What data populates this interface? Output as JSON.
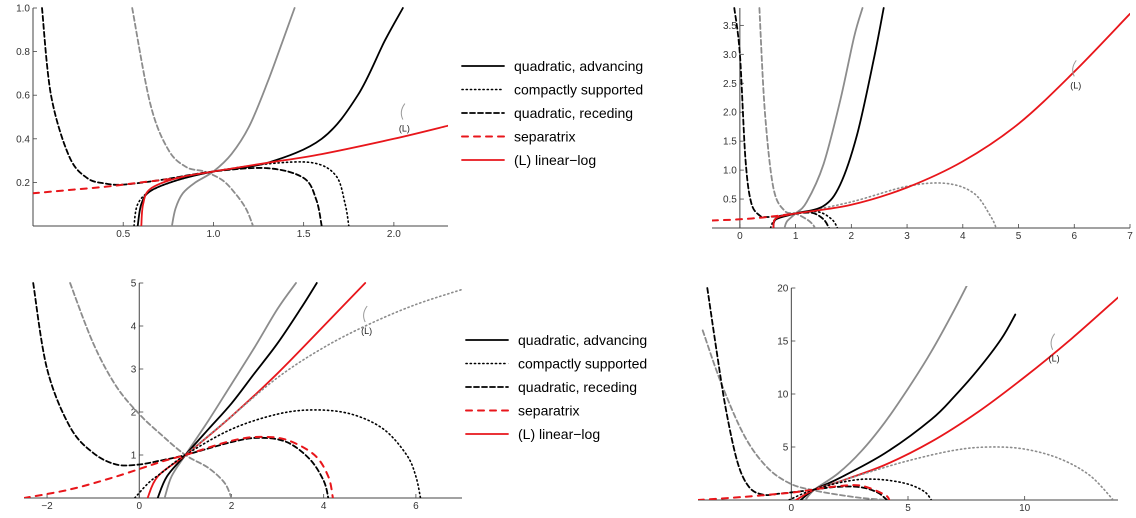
{
  "styles": {
    "black_solid": {
      "color": "#000000",
      "dash": "",
      "width": 1.8
    },
    "black_dotted": {
      "color": "#000000",
      "dash": "1.2,3",
      "width": 1.6
    },
    "black_dashed": {
      "color": "#000000",
      "dash": "5,3",
      "width": 1.8
    },
    "red_dashed": {
      "color": "#e8161b",
      "dash": "6,6",
      "width": 2
    },
    "red_solid": {
      "color": "#e8161b",
      "dash": "",
      "width": 1.8
    },
    "gray_solid": {
      "color": "#8c8c8c",
      "dash": "",
      "width": 1.8
    },
    "gray_dashed": {
      "color": "#8c8c8c",
      "dash": "5,3",
      "width": 1.8
    },
    "gray_dotted": {
      "color": "#8c8c8c",
      "dash": "1.2,3",
      "width": 1.6
    }
  },
  "legends": [
    {
      "items": [
        {
          "style": "black_solid",
          "label": "quadratic, advancing"
        },
        {
          "style": "black_dotted",
          "label": "compactly supported"
        },
        {
          "style": "black_dashed",
          "label": "quadratic, receding"
        },
        {
          "style": "red_dashed",
          "label": "separatrix"
        },
        {
          "style": "red_solid",
          "label": "(L) linear−log"
        }
      ]
    },
    {
      "items": [
        {
          "style": "black_solid",
          "label": "quadratic, advancing"
        },
        {
          "style": "black_dotted",
          "label": "compactly supported"
        },
        {
          "style": "black_dashed",
          "label": "quadratic, receding"
        },
        {
          "style": "red_dashed",
          "label": "separatrix"
        },
        {
          "style": "red_solid",
          "label": "(L) linear−log"
        }
      ]
    }
  ],
  "chart_data": [
    {
      "type": "line",
      "xlim": [
        0,
        2.3
      ],
      "ylim": [
        0,
        1.0
      ],
      "xticks": [
        0.5,
        1.0,
        1.5,
        2.0
      ],
      "xtick_labels": [
        "0.5",
        "1.0",
        "1.5",
        "2.0"
      ],
      "yticks": [
        0.2,
        0.4,
        0.6,
        0.8,
        1.0
      ],
      "ytick_labels": [
        "0.2",
        "0.4",
        "0.6",
        "0.8",
        "1.0"
      ],
      "y_axis_at": 0,
      "x_axis_at": 0,
      "annotation": {
        "text": "(L)",
        "x": 2.05,
        "y": 0.47
      },
      "series": [
        {
          "style": "gray_dashed",
          "x": [
            0.55,
            0.65,
            0.75,
            0.85,
            0.95,
            1.05,
            1.12,
            1.18,
            1.22
          ],
          "y": [
            1.0,
            0.56,
            0.35,
            0.27,
            0.25,
            0.21,
            0.15,
            0.08,
            0.0
          ]
        },
        {
          "style": "gray_solid",
          "x": [
            0.77,
            0.79,
            0.83,
            0.9,
            1.0,
            1.1,
            1.2,
            1.3,
            1.38,
            1.45
          ],
          "y": [
            0.0,
            0.08,
            0.15,
            0.2,
            0.25,
            0.33,
            0.46,
            0.66,
            0.84,
            1.0
          ]
        },
        {
          "style": "black_dotted",
          "x": [
            0.56,
            0.58,
            0.65,
            0.8,
            1.0,
            1.3,
            1.55,
            1.68,
            1.73,
            1.75
          ],
          "y": [
            0.0,
            0.1,
            0.16,
            0.21,
            0.25,
            0.285,
            0.29,
            0.23,
            0.1,
            0.0
          ]
        },
        {
          "style": "black_dashed",
          "x": [
            0.05,
            0.1,
            0.2,
            0.3,
            0.4,
            0.5,
            0.7,
            1.0,
            1.3,
            1.5,
            1.57,
            1.6
          ],
          "y": [
            1.0,
            0.6,
            0.32,
            0.22,
            0.195,
            0.19,
            0.21,
            0.25,
            0.265,
            0.22,
            0.12,
            0.0
          ]
        },
        {
          "style": "red_dashed",
          "x": [
            0.0,
            0.2,
            0.4,
            0.6,
            0.8,
            1.0
          ],
          "y": [
            0.15,
            0.165,
            0.18,
            0.2,
            0.22,
            0.25
          ]
        },
        {
          "style": "black_solid",
          "x": [
            0.58,
            0.6,
            0.65,
            0.8,
            1.0,
            1.3,
            1.6,
            1.8,
            1.95,
            2.05
          ],
          "y": [
            0.0,
            0.1,
            0.16,
            0.21,
            0.25,
            0.29,
            0.4,
            0.6,
            0.85,
            1.0
          ]
        },
        {
          "style": "red_solid",
          "x": [
            0.6,
            0.61,
            0.65,
            0.8,
            1.0,
            1.3,
            1.6,
            2.0,
            2.3
          ],
          "y": [
            0.0,
            0.1,
            0.17,
            0.22,
            0.25,
            0.29,
            0.33,
            0.4,
            0.46
          ]
        }
      ]
    },
    {
      "type": "line",
      "xlim": [
        -0.5,
        7
      ],
      "ylim": [
        0,
        3.8
      ],
      "xticks": [
        0,
        1,
        2,
        3,
        4,
        5,
        6,
        7
      ],
      "xtick_labels": [
        "0",
        "1",
        "2",
        "3",
        "4",
        "5",
        "6",
        "7"
      ],
      "yticks": [
        0.5,
        1.0,
        1.5,
        2.0,
        2.5,
        3.0,
        3.5
      ],
      "ytick_labels": [
        "0.5",
        "1.0",
        "1.5",
        "2.0",
        "2.5",
        "3.0",
        "3.5"
      ],
      "y_axis_at": 0,
      "x_axis_at": 0,
      "annotation": {
        "text": "(L)",
        "x": 6.0,
        "y": 2.55
      },
      "series": [
        {
          "style": "gray_dashed",
          "x": [
            0.35,
            0.45,
            0.6,
            0.8,
            1.0,
            1.2,
            1.3,
            1.35
          ],
          "y": [
            3.8,
            2.0,
            0.7,
            0.3,
            0.25,
            0.15,
            0.07,
            0.0
          ]
        },
        {
          "style": "gray_solid",
          "x": [
            0.8,
            0.85,
            1.0,
            1.2,
            1.5,
            1.8,
            2.05,
            2.2
          ],
          "y": [
            0.0,
            0.12,
            0.25,
            0.45,
            1.1,
            2.2,
            3.3,
            3.8
          ]
        },
        {
          "style": "gray_dotted",
          "x": [
            1.0,
            2.0,
            3.0,
            3.7,
            4.2,
            4.5,
            4.6
          ],
          "y": [
            0.25,
            0.45,
            0.72,
            0.77,
            0.6,
            0.2,
            0.0
          ]
        },
        {
          "style": "black_dotted",
          "x": [
            0.55,
            0.65,
            1.0,
            1.4,
            1.65,
            1.75
          ],
          "y": [
            0.0,
            0.16,
            0.25,
            0.28,
            0.15,
            0.0
          ]
        },
        {
          "style": "black_dashed",
          "x": [
            -0.1,
            0.0,
            0.1,
            0.2,
            0.35,
            0.5,
            0.8,
            1.0,
            1.3,
            1.5,
            1.6
          ],
          "y": [
            3.8,
            3.0,
            1.2,
            0.45,
            0.22,
            0.19,
            0.22,
            0.25,
            0.26,
            0.15,
            0.0
          ]
        },
        {
          "style": "red_dashed",
          "x": [
            -0.5,
            0.0,
            0.5,
            1.0
          ],
          "y": [
            0.13,
            0.15,
            0.19,
            0.25
          ]
        },
        {
          "style": "black_solid",
          "x": [
            0.6,
            0.65,
            1.0,
            1.5,
            1.8,
            2.1,
            2.4,
            2.58
          ],
          "y": [
            0.0,
            0.15,
            0.25,
            0.38,
            0.75,
            1.6,
            2.9,
            3.8
          ]
        },
        {
          "style": "red_solid",
          "x": [
            0.6,
            0.65,
            1.0,
            2.0,
            3.0,
            4.0,
            5.0,
            6.0,
            7.0
          ],
          "y": [
            0.0,
            0.17,
            0.25,
            0.4,
            0.7,
            1.15,
            1.8,
            2.7,
            3.7
          ]
        }
      ]
    },
    {
      "type": "line",
      "xlim": [
        -2.5,
        7
      ],
      "ylim": [
        0,
        5
      ],
      "xticks": [
        -2,
        0,
        2,
        4,
        6
      ],
      "xtick_labels": [
        "−2",
        "0",
        "2",
        "4",
        "6"
      ],
      "yticks": [
        1,
        2,
        3,
        4,
        5
      ],
      "ytick_labels": [
        "1",
        "2",
        "3",
        "4",
        "5"
      ],
      "y_axis_at": 0,
      "x_axis_at": 0,
      "annotation": {
        "text": "(L)",
        "x": 4.9,
        "y": 4.0
      },
      "series": [
        {
          "style": "gray_dashed",
          "x": [
            -1.5,
            -1.0,
            -0.5,
            0.0,
            0.5,
            1.0,
            1.5,
            1.85,
            2.0
          ],
          "y": [
            5.0,
            3.6,
            2.6,
            1.95,
            1.45,
            1.0,
            0.7,
            0.35,
            0.0
          ]
        },
        {
          "style": "gray_solid",
          "x": [
            0.55,
            0.7,
            1.0,
            1.5,
            2.0,
            2.5,
            3.0,
            3.4
          ],
          "y": [
            0.0,
            0.5,
            1.0,
            1.8,
            2.65,
            3.5,
            4.4,
            5.0
          ]
        },
        {
          "style": "black_solid",
          "x": [
            0.4,
            0.6,
            1.0,
            1.5,
            2.0,
            2.5,
            3.0,
            3.5,
            3.85
          ],
          "y": [
            0.0,
            0.5,
            1.0,
            1.6,
            2.2,
            2.9,
            3.6,
            4.4,
            5.0
          ]
        },
        {
          "style": "red_solid",
          "x": [
            0.18,
            0.4,
            1.0,
            2.0,
            3.0,
            4.0,
            4.9
          ],
          "y": [
            0.0,
            0.5,
            1.0,
            1.9,
            2.9,
            4.0,
            5.0
          ]
        },
        {
          "style": "gray_dotted",
          "x": [
            1.0,
            2.0,
            3.0,
            4.0,
            5.0,
            6.0,
            7.0
          ],
          "y": [
            1.0,
            1.9,
            2.8,
            3.5,
            4.05,
            4.5,
            4.85
          ]
        },
        {
          "style": "black_dotted",
          "x": [
            -0.1,
            0.2,
            0.5,
            1.0,
            2.0,
            3.0,
            3.8,
            4.6,
            5.3,
            5.8,
            6.0,
            6.1
          ],
          "y": [
            0.0,
            0.35,
            0.6,
            1.0,
            1.6,
            1.95,
            2.05,
            1.95,
            1.6,
            1.0,
            0.5,
            0.0
          ]
        },
        {
          "style": "black_dashed",
          "x": [
            -2.3,
            -2.0,
            -1.5,
            -1.0,
            -0.5,
            0.0,
            0.5,
            1.0,
            2.0,
            2.6,
            3.2,
            3.7,
            4.0,
            4.1
          ],
          "y": [
            5.0,
            3.0,
            1.65,
            1.05,
            0.78,
            0.78,
            0.88,
            1.0,
            1.3,
            1.4,
            1.3,
            0.9,
            0.4,
            0.0
          ]
        },
        {
          "style": "red_dashed",
          "x": [
            -2.5,
            -1.5,
            -0.5,
            0.5,
            1.0,
            2.0,
            2.6,
            3.2,
            3.8,
            4.1,
            4.2
          ],
          "y": [
            0.0,
            0.2,
            0.5,
            0.85,
            1.0,
            1.33,
            1.42,
            1.35,
            1.0,
            0.5,
            0.0
          ]
        }
      ]
    },
    {
      "type": "line",
      "xlim": [
        -4,
        14
      ],
      "ylim": [
        0,
        20
      ],
      "xticks": [
        0,
        5,
        10
      ],
      "xtick_labels": [
        "0",
        "5",
        "10"
      ],
      "yticks": [
        5,
        10,
        15,
        20
      ],
      "ytick_labels": [
        "5",
        "10",
        "15",
        "20"
      ],
      "y_axis_at": 0,
      "x_axis_at": 0,
      "annotation": {
        "text": "(L)",
        "x": 11.2,
        "y": 13.8
      },
      "series": [
        {
          "style": "gray_dashed",
          "x": [
            -3.8,
            -3.0,
            -2.0,
            -1.0,
            0.0,
            1.0,
            2.0,
            3.0,
            4.0
          ],
          "y": [
            16.0,
            11.0,
            6.0,
            3.0,
            1.5,
            0.9,
            0.5,
            0.2,
            0.0
          ]
        },
        {
          "style": "gray_solid",
          "x": [
            0.6,
            1.0,
            2.0,
            3.0,
            4.0,
            5.0,
            6.0,
            7.0,
            7.7
          ],
          "y": [
            0.0,
            1.0,
            2.5,
            4.6,
            7.3,
            10.5,
            14.0,
            18.0,
            21.0
          ]
        },
        {
          "style": "black_solid",
          "x": [
            0.4,
            1.0,
            2.0,
            4.0,
            6.0,
            7.0,
            8.0,
            9.0,
            9.6
          ],
          "y": [
            0.0,
            1.0,
            2.0,
            4.4,
            7.6,
            9.8,
            12.3,
            15.2,
            17.5
          ]
        },
        {
          "style": "red_solid",
          "x": [
            0.2,
            1.0,
            2.0,
            4.0,
            6.0,
            8.0,
            10.0,
            12.0,
            14.0
          ],
          "y": [
            0.0,
            1.0,
            1.7,
            3.3,
            5.5,
            8.3,
            11.6,
            15.2,
            19.1
          ]
        },
        {
          "style": "gray_dotted",
          "x": [
            1.0,
            3.0,
            5.0,
            7.0,
            8.5,
            10.0,
            11.5,
            12.8,
            13.8
          ],
          "y": [
            1.0,
            2.4,
            3.7,
            4.7,
            5.0,
            4.8,
            3.9,
            2.3,
            0.0
          ]
        },
        {
          "style": "black_dotted",
          "x": [
            -0.1,
            0.5,
            1.0,
            2.0,
            3.0,
            4.0,
            5.0,
            5.7,
            6.0
          ],
          "y": [
            0.0,
            0.6,
            1.0,
            1.6,
            1.95,
            1.9,
            1.5,
            0.8,
            0.0
          ]
        },
        {
          "style": "black_dashed",
          "x": [
            -3.6,
            -3.2,
            -2.8,
            -2.3,
            -1.8,
            -1.2,
            -0.5,
            0.5,
            1.0,
            2.0,
            3.0,
            3.7,
            4.1
          ],
          "y": [
            20.0,
            14.0,
            8.5,
            3.5,
            1.2,
            0.5,
            0.6,
            0.85,
            1.0,
            1.25,
            1.2,
            0.7,
            0.0
          ]
        },
        {
          "style": "red_dashed",
          "x": [
            -4.0,
            -2.0,
            0.0,
            1.0,
            2.0,
            3.0,
            4.0,
            4.2
          ],
          "y": [
            0.0,
            0.3,
            0.7,
            1.0,
            1.3,
            1.35,
            0.5,
            0.0
          ]
        }
      ]
    }
  ]
}
